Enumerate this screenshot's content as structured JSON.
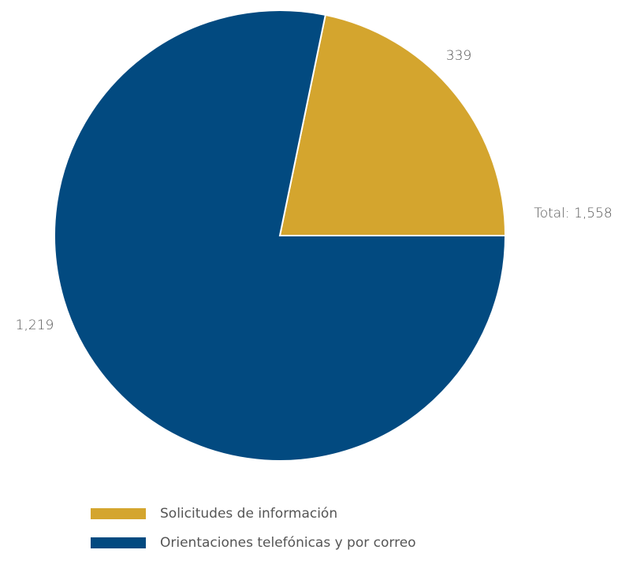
{
  "chart_data": {
    "type": "pie",
    "total_label": "Total: 1,558",
    "slices": [
      {
        "name": "Solicitudes de información",
        "value": 339,
        "label": "339",
        "color": "#D4A52E"
      },
      {
        "name": "Orientaciones telefónicas y por correo",
        "value": 1219,
        "label": "1,219",
        "color": "#024A80"
      }
    ]
  },
  "legend": [
    {
      "label": "Solicitudes de información",
      "color": "#D4A52E"
    },
    {
      "label": "Orientaciones telefónicas y por correo",
      "color": "#024A80"
    }
  ]
}
